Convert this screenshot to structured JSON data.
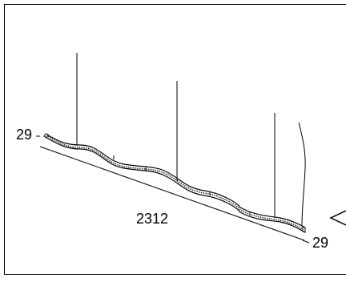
{
  "drawing": {
    "dimensions": {
      "left_height": "29",
      "length": "2312",
      "right_height": "29"
    },
    "colors": {
      "line": "#000000",
      "background": "#ffffff"
    }
  }
}
